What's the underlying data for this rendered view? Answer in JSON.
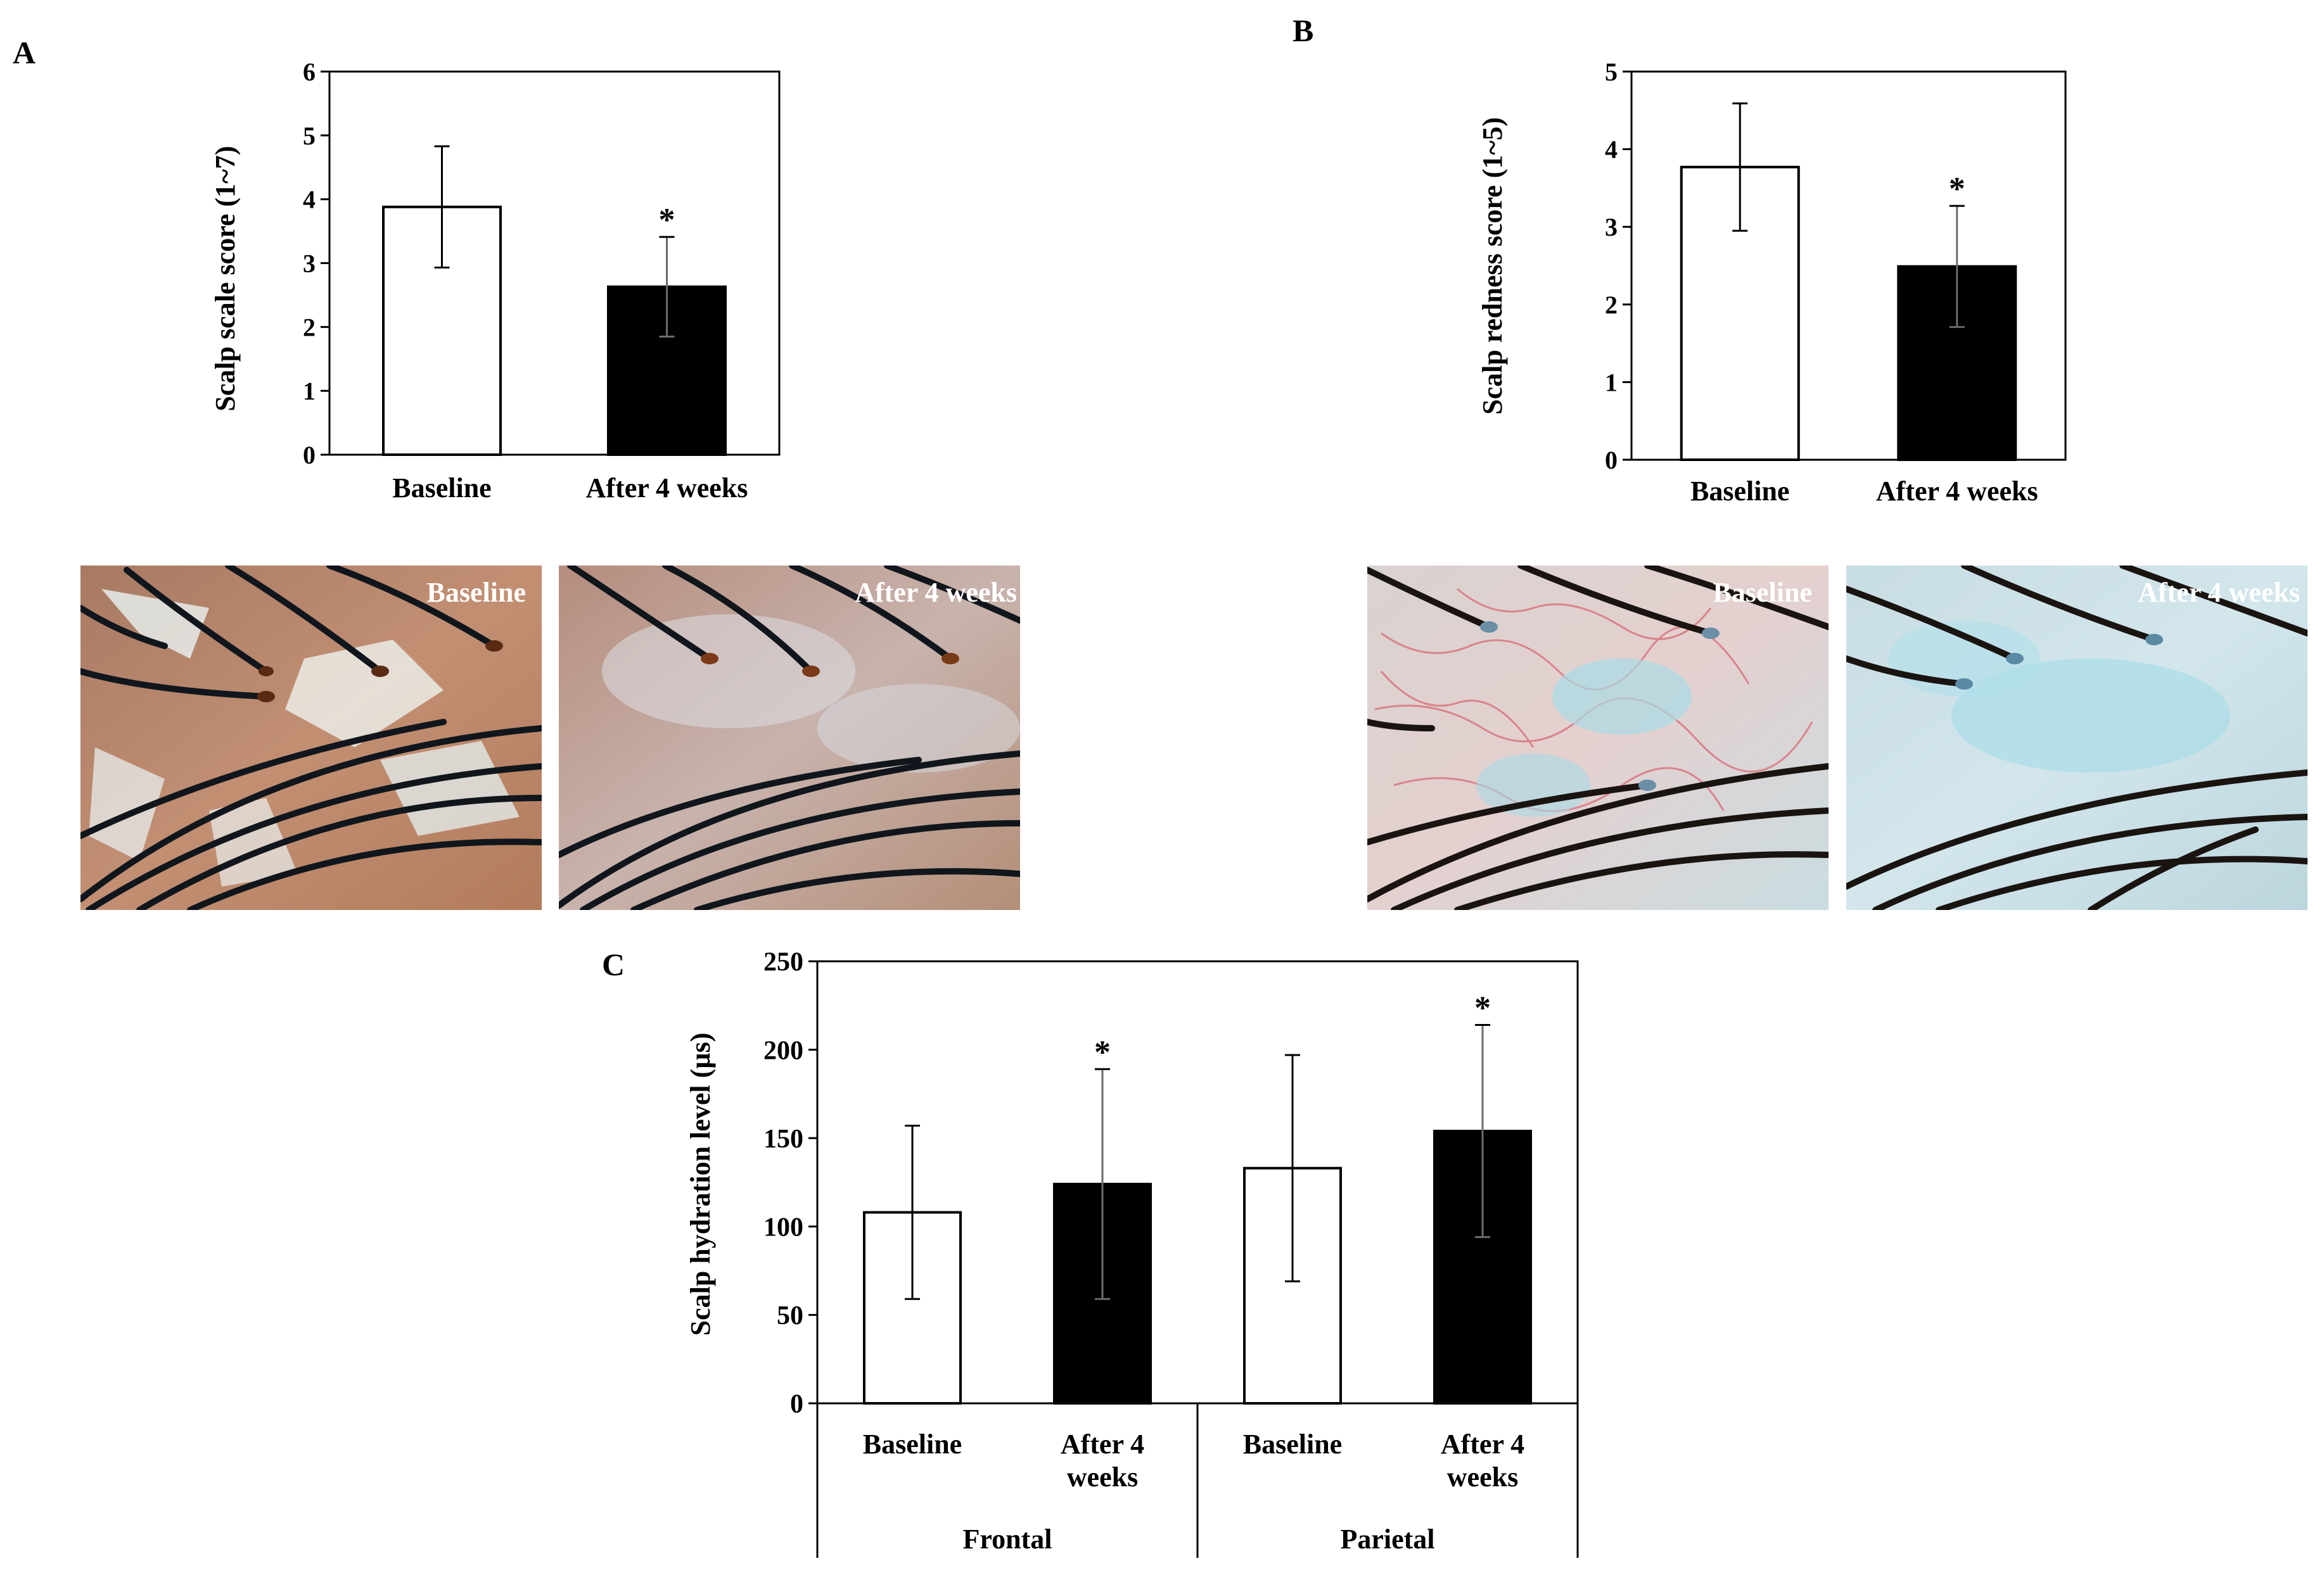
{
  "panels": {
    "A": {
      "label": "A"
    },
    "B": {
      "label": "B"
    },
    "C": {
      "label": "C"
    }
  },
  "photos": {
    "A": [
      "Baseline",
      "After 4 weeks"
    ],
    "B": [
      "Baseline",
      "After 4 weeks"
    ]
  },
  "colors": {
    "baseline": "#ffffff",
    "after": "#000000",
    "axis": "#000000"
  },
  "chart_data": [
    {
      "id": "A",
      "type": "bar",
      "categories": [
        "Baseline",
        "After 4 weeks"
      ],
      "values": [
        3.88,
        2.63
      ],
      "errors": [
        0.95,
        0.78
      ],
      "significance": [
        "",
        "*"
      ],
      "ylabel": "Scalp scale score (1~7)",
      "ylim": [
        0,
        6
      ],
      "yticks": [
        0,
        1,
        2,
        3,
        4,
        5,
        6
      ]
    },
    {
      "id": "B",
      "type": "bar",
      "categories": [
        "Baseline",
        "After 4 weeks"
      ],
      "values": [
        3.77,
        2.49
      ],
      "errors": [
        0.82,
        0.78
      ],
      "significance": [
        "",
        "*"
      ],
      "ylabel": "Scalp redness score (1~5)",
      "ylim": [
        0,
        5
      ],
      "yticks": [
        0,
        1,
        2,
        3,
        4,
        5
      ]
    },
    {
      "id": "C",
      "type": "bar",
      "categories": [
        "Baseline",
        "After 4 weeks",
        "Baseline",
        "After 4 weeks"
      ],
      "category_lines": [
        [
          "Baseline"
        ],
        [
          "After 4",
          "weeks"
        ],
        [
          "Baseline"
        ],
        [
          "After 4",
          "weeks"
        ]
      ],
      "groups": [
        {
          "name": "Frontal",
          "span": 2
        },
        {
          "name": "Parietal",
          "span": 2
        }
      ],
      "values": [
        108,
        124,
        133,
        154
      ],
      "errors": [
        49,
        65,
        64,
        60
      ],
      "significance": [
        "",
        "*",
        "",
        "*"
      ],
      "ylabel": "Scalp hydration level (µs)",
      "ylim": [
        0,
        250
      ],
      "yticks": [
        0,
        50,
        100,
        150,
        200,
        250
      ]
    }
  ]
}
